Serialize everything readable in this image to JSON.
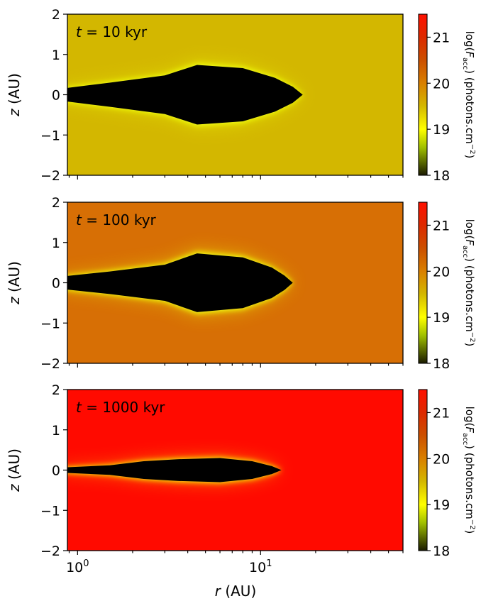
{
  "chart_data": {
    "type": "heatmap",
    "description_scale": "log",
    "colormap": {
      "name": "black-yellow-orange-red",
      "stops": [
        {
          "value": 18.0,
          "color": "#1a1a00"
        },
        {
          "value": 18.6,
          "color": "#9fbf00"
        },
        {
          "value": 19.0,
          "color": "#ffff00"
        },
        {
          "value": 19.5,
          "color": "#d4b800"
        },
        {
          "value": 20.0,
          "color": "#d98000"
        },
        {
          "value": 20.5,
          "color": "#cc5000"
        },
        {
          "value": 21.0,
          "color": "#dd2a00"
        },
        {
          "value": 21.5,
          "color": "#ff1000"
        }
      ]
    },
    "shared": {
      "xlabel_italic": "r",
      "xlabel_unit": " (AU)",
      "ylabel_italic": "z",
      "ylabel_unit": " (AU)",
      "x_scale": "log",
      "xlim": [
        0.88,
        60
      ],
      "ylim": [
        -2,
        2
      ],
      "yticks": [
        "2",
        "1",
        "0",
        "−1",
        "−2"
      ],
      "xtick_base": "10",
      "xtick_exponents": [
        "0",
        "1"
      ],
      "cbar_ticks": [
        "21",
        "20",
        "19",
        "18"
      ],
      "cbar_range": [
        18,
        21.5
      ],
      "cbar_label_prefix": "log(",
      "cbar_label_var": "F",
      "cbar_label_sub": "acc",
      "cbar_label_mid": ")  (photons.cm",
      "cbar_label_sup": "−2",
      "cbar_label_end": ")"
    },
    "panels": [
      {
        "label_var": "t",
        "label_text": " = 10 kyr",
        "background_value": 19.4,
        "background_color": "#d3b700",
        "shadow_color": "#000000",
        "halo_color": "#f0ff10",
        "shadow_profile": {
          "r_au": [
            0.88,
            1.5,
            3.0,
            4.5,
            8.0,
            12.0,
            15.0,
            17.0
          ],
          "z_upper_au": [
            0.17,
            0.3,
            0.48,
            0.74,
            0.66,
            0.42,
            0.2,
            0.0
          ]
        }
      },
      {
        "label_var": "t",
        "label_text": " = 100 kyr",
        "background_value": 20.1,
        "background_color": "#d76f05",
        "shadow_color": "#000000",
        "halo_color": "#f0ff10",
        "shadow_profile": {
          "r_au": [
            0.88,
            1.5,
            3.0,
            4.5,
            8.0,
            11.5,
            13.5,
            15.0
          ],
          "z_upper_au": [
            0.17,
            0.28,
            0.45,
            0.73,
            0.63,
            0.38,
            0.18,
            0.0
          ]
        }
      },
      {
        "label_var": "t",
        "label_text": " = 1000 kyr",
        "background_value": 21.4,
        "background_color": "#ff0a00",
        "shadow_color": "#000000",
        "halo_color": "#f0ff10",
        "shadow_profile": {
          "r_au": [
            0.88,
            1.5,
            2.3,
            3.5,
            6.0,
            9.0,
            11.5,
            13.0
          ],
          "z_upper_au": [
            0.07,
            0.12,
            0.22,
            0.27,
            0.3,
            0.22,
            0.1,
            0.0
          ]
        }
      }
    ]
  }
}
